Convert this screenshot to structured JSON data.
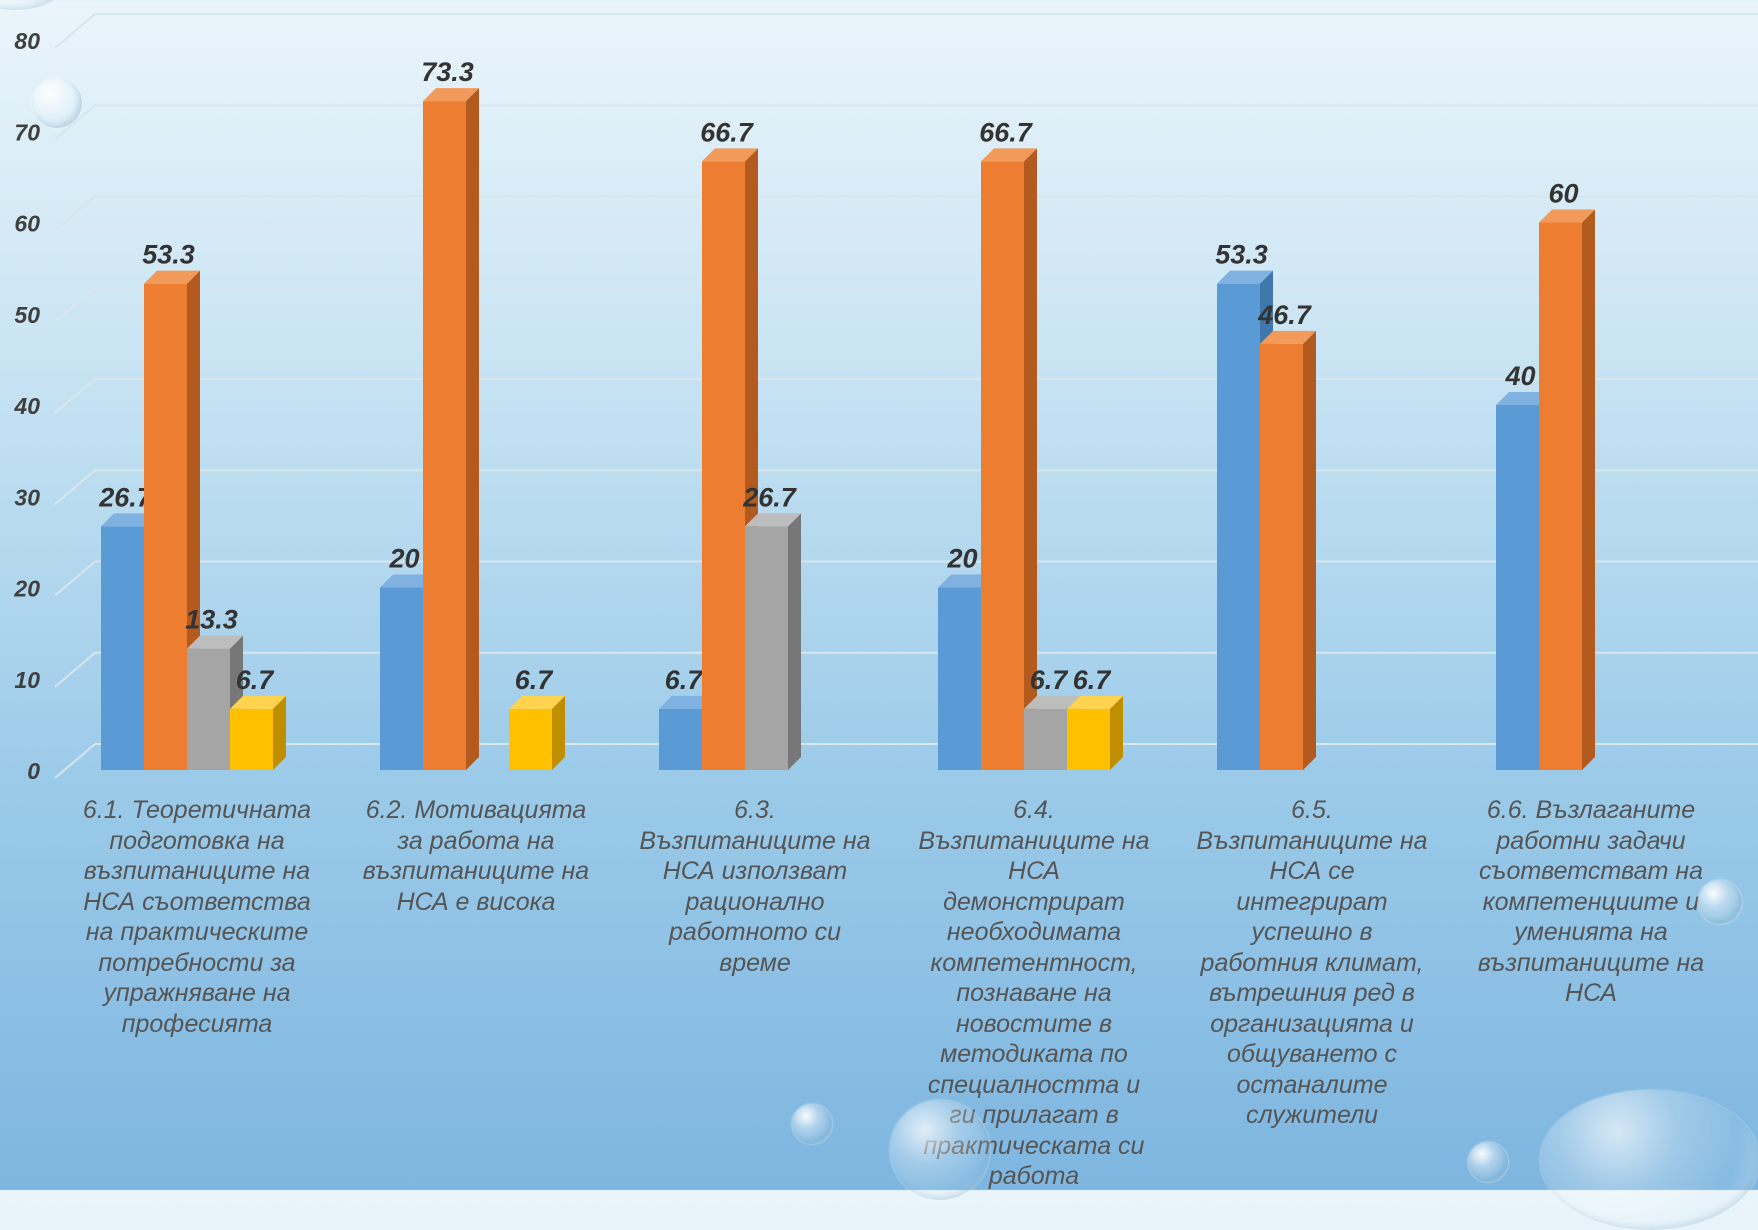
{
  "chart_data": {
    "type": "bar",
    "categories": [
      "6.1. Теоретичната подготовка на възпитаниците на НСА съответства на практическите потребности за упражняване на професията",
      "6.2. Мотивацията за работа на възпитаниците на НСА е висока",
      "6.3. Възпитаниците на НСА използват рационално работното си време",
      "6.4. Възпитаниците на НСА демонстрират необходимата компетентност, познаване на новостите в методиката по специалността и ги прилагат в практическата си работа",
      "6.5. Възпитаниците на НСА се интегрират успешно в работния климат, вътрешния ред в организацията и общуването с останалите служители",
      "6.6. Възлаганите работни задачи съответстват на компетенциите и уменията на възпитаниците на НСА"
    ],
    "category_lines": [
      [
        "6.1. Теоретичната",
        "подготовка на",
        "възпитаниците на",
        "НСА съответства",
        "на практическите",
        "потребности за",
        "упражняване на",
        "професията"
      ],
      [
        "6.2. Мотивацията",
        "за работа на",
        "възпитаниците на",
        "НСА е висока"
      ],
      [
        "6.3.",
        "Възпитаниците на",
        "НСА използват",
        "рационално",
        "работното си",
        "време"
      ],
      [
        "6.4.",
        "Възпитаниците на",
        "НСА",
        "демонстрират",
        "необходимата",
        "компетентност,",
        "познаване на",
        "новостите в",
        "методиката по",
        "специалността и",
        "ги прилагат в",
        "практическата си",
        "работа"
      ],
      [
        "6.5.",
        "Възпитаниците на",
        "НСА се",
        "интегрират",
        "успешно в",
        "работния климат,",
        "вътрешния ред в",
        "организацията и",
        "общуването с",
        "останалите",
        "служители"
      ],
      [
        "6.6. Възлаганите",
        "работни задачи",
        "съответстват на",
        "компетенциите и",
        "уменията на",
        "възпитаниците на",
        "НСА"
      ]
    ],
    "series": [
      {
        "color": "#5b9bd5",
        "side": "#3f77ab",
        "top": "#7fb2e0",
        "values": [
          26.7,
          20,
          6.7,
          20,
          53.3,
          40
        ]
      },
      {
        "color": "#ed7d31",
        "side": "#b35a1e",
        "top": "#f29a5a",
        "values": [
          53.3,
          73.3,
          66.7,
          66.7,
          46.7,
          60
        ]
      },
      {
        "color": "#a5a5a5",
        "side": "#777777",
        "top": "#bdbdbd",
        "values": [
          13.3,
          null,
          26.7,
          6.7,
          null,
          null
        ]
      },
      {
        "color": "#ffc000",
        "side": "#c08f00",
        "top": "#ffd34d",
        "values": [
          6.7,
          6.7,
          null,
          6.7,
          null,
          null
        ]
      }
    ],
    "yticks": [
      "0",
      "10",
      "20",
      "30",
      "40",
      "50",
      "60",
      "70",
      "80"
    ],
    "ylim": [
      0,
      80
    ],
    "grid": true,
    "legend": "none"
  }
}
